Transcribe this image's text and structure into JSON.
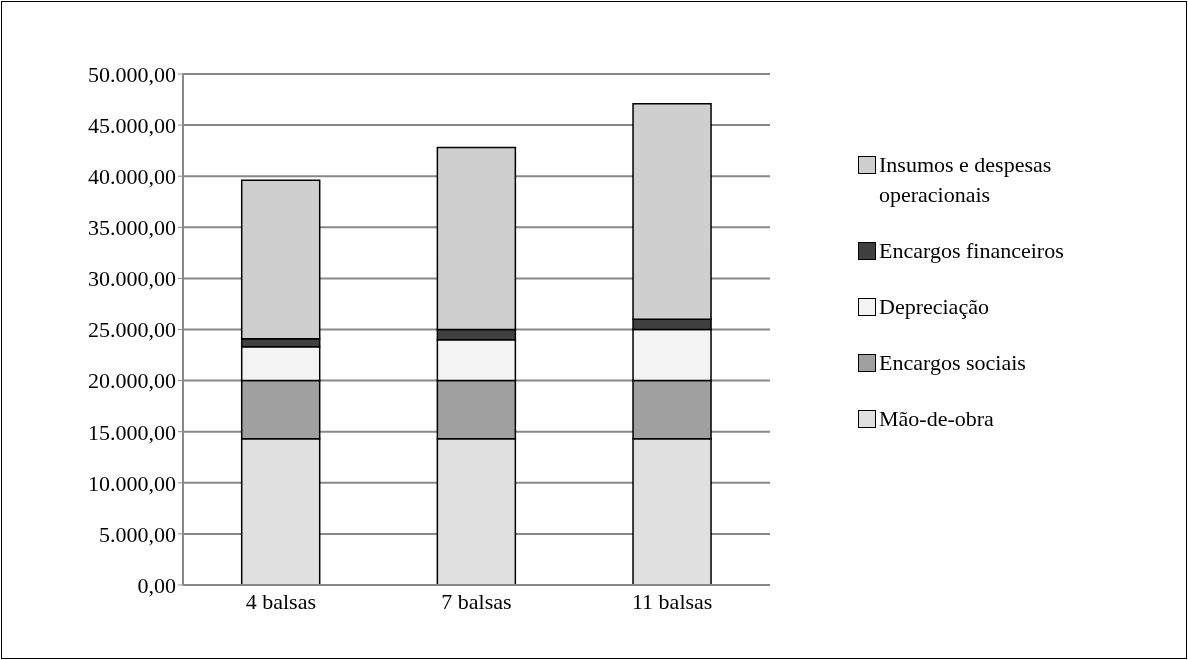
{
  "chart_data": {
    "type": "bar",
    "stacked": true,
    "categories": [
      "4 balsas",
      "7 balsas",
      "11 balsas"
    ],
    "series": [
      {
        "name": "Mão-de-obra",
        "color": "#e0e0e0",
        "values": [
          14300,
          14300,
          14300
        ]
      },
      {
        "name": "Encargos sociais",
        "color": "#a0a0a0",
        "values": [
          5700,
          5700,
          5700
        ]
      },
      {
        "name": "Depreciação",
        "color": "#f3f3f3",
        "values": [
          3300,
          4000,
          5000
        ]
      },
      {
        "name": "Encargos financeiros",
        "color": "#404040",
        "values": [
          800,
          1000,
          1000
        ]
      },
      {
        "name": "Insumos e despesas operacionais",
        "color": "#cfcfcf",
        "values": [
          15500,
          17800,
          21100
        ]
      }
    ],
    "ylim": [
      0,
      50000
    ],
    "yticks": [
      {
        "value": 0,
        "label": "0,00"
      },
      {
        "value": 5000,
        "label": "5.000,00"
      },
      {
        "value": 10000,
        "label": "10.000,00"
      },
      {
        "value": 15000,
        "label": "15.000,00"
      },
      {
        "value": 20000,
        "label": "20.000,00"
      },
      {
        "value": 25000,
        "label": "25.000,00"
      },
      {
        "value": 30000,
        "label": "30.000,00"
      },
      {
        "value": 35000,
        "label": "35.000,00"
      },
      {
        "value": 40000,
        "label": "40.000,00"
      },
      {
        "value": 45000,
        "label": "45.000,00"
      },
      {
        "value": 50000,
        "label": "50.000,00"
      }
    ],
    "grid": "y",
    "legend": "right"
  }
}
